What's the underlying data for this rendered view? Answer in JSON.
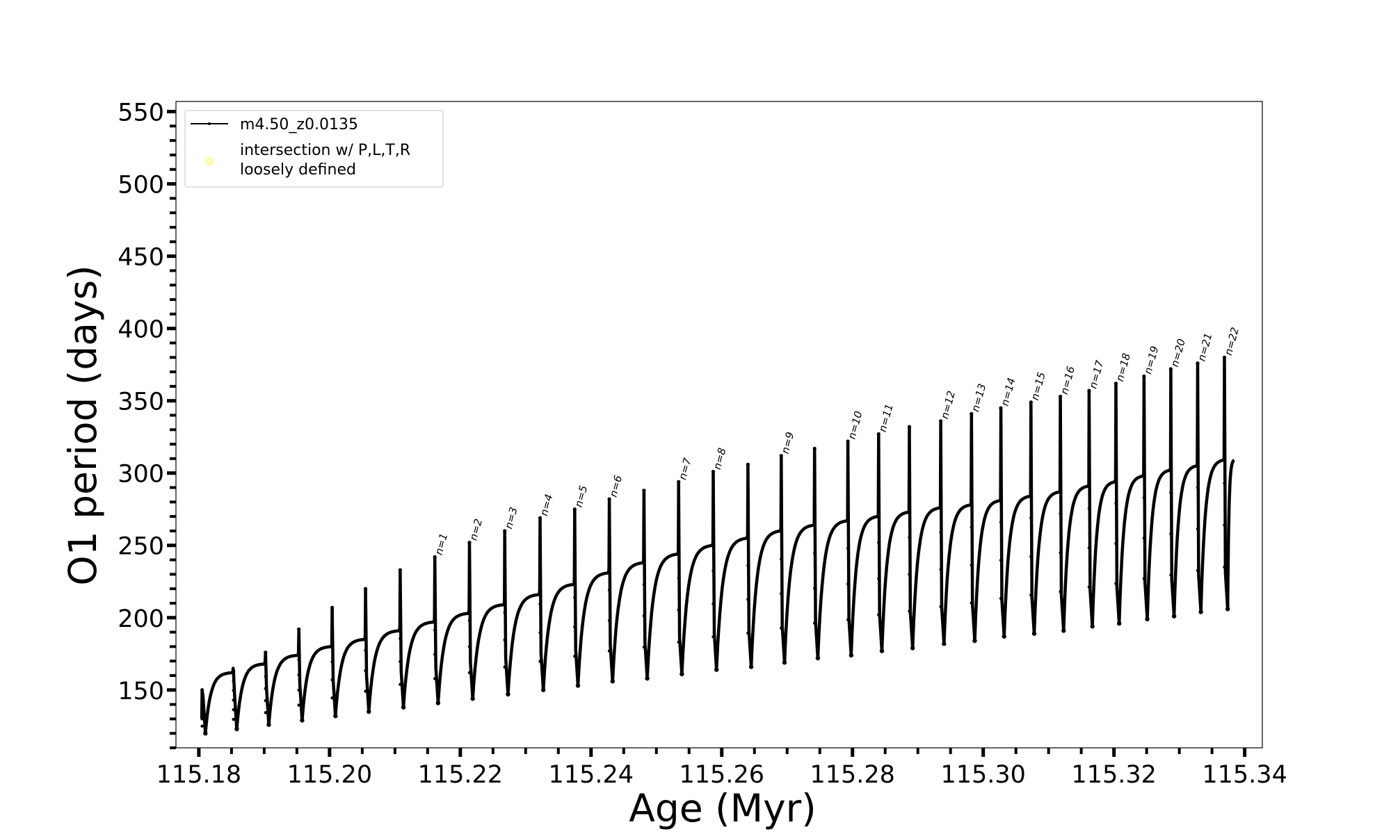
{
  "chart_data": {
    "type": "line",
    "xlabel": "Age (Myr)",
    "ylabel": "O1 period (days)",
    "xlim": [
      115.1765,
      115.3427
    ],
    "ylim": [
      110,
      557
    ],
    "x_ticks": [
      "115.18",
      "115.20",
      "115.22",
      "115.24",
      "115.26",
      "115.28",
      "115.30",
      "115.32",
      "115.34"
    ],
    "x_tick_values": [
      115.18,
      115.2,
      115.22,
      115.24,
      115.26,
      115.28,
      115.3,
      115.32,
      115.34
    ],
    "y_ticks": [
      "150",
      "200",
      "250",
      "300",
      "350",
      "400",
      "450",
      "500",
      "550"
    ],
    "y_tick_values": [
      150,
      200,
      250,
      300,
      350,
      400,
      450,
      500,
      550
    ],
    "grid": false,
    "legend_position": "top-left",
    "legend": [
      {
        "label": "m4.50_z0.0135",
        "marker": "line-with-dots",
        "color": "#000000"
      },
      {
        "label_lines": [
          "intersection w/ P,L,T,R",
          "loosely defined"
        ],
        "marker": "circle",
        "color": "#fdfbb8"
      }
    ],
    "series": [
      {
        "name": "m4.50_z0.0135",
        "color": "#000000",
        "pulses": [
          {
            "t": 115.1805,
            "min": 120,
            "peak": 150,
            "plateau": 162
          },
          {
            "t": 115.1853,
            "min": 123,
            "peak": 163,
            "plateau": 168
          },
          {
            "t": 115.1902,
            "min": 126,
            "peak": 176,
            "plateau": 174
          },
          {
            "t": 115.1953,
            "min": 129,
            "peak": 192,
            "plateau": 180
          },
          {
            "t": 115.2004,
            "min": 132,
            "peak": 207,
            "plateau": 185
          },
          {
            "t": 115.2055,
            "min": 135,
            "peak": 220,
            "plateau": 191
          },
          {
            "t": 115.2108,
            "min": 138,
            "peak": 233,
            "plateau": 197
          },
          {
            "t": 115.2161,
            "min": 141,
            "peak": 242,
            "plateau": 203
          },
          {
            "t": 115.2214,
            "min": 144,
            "peak": 252,
            "plateau": 209
          },
          {
            "t": 115.2268,
            "min": 147,
            "peak": 260,
            "plateau": 216
          },
          {
            "t": 115.2322,
            "min": 150,
            "peak": 269,
            "plateau": 223
          },
          {
            "t": 115.2375,
            "min": 153,
            "peak": 275,
            "plateau": 231
          },
          {
            "t": 115.2428,
            "min": 156,
            "peak": 282,
            "plateau": 238
          },
          {
            "t": 115.2481,
            "min": 158,
            "peak": 288,
            "plateau": 244
          },
          {
            "t": 115.2534,
            "min": 161,
            "peak": 294,
            "plateau": 250
          },
          {
            "t": 115.2587,
            "min": 164,
            "peak": 301,
            "plateau": 255
          },
          {
            "t": 115.264,
            "min": 166,
            "peak": 306,
            "plateau": 260
          },
          {
            "t": 115.2691,
            "min": 169,
            "peak": 312,
            "plateau": 264
          },
          {
            "t": 115.2742,
            "min": 172,
            "peak": 317,
            "plateau": 267
          },
          {
            "t": 115.2793,
            "min": 174,
            "peak": 322,
            "plateau": 270
          },
          {
            "t": 115.284,
            "min": 177,
            "peak": 327,
            "plateau": 273
          },
          {
            "t": 115.2887,
            "min": 179,
            "peak": 332,
            "plateau": 276
          },
          {
            "t": 115.2935,
            "min": 182,
            "peak": 336,
            "plateau": 278
          },
          {
            "t": 115.2982,
            "min": 184,
            "peak": 341,
            "plateau": 281
          },
          {
            "t": 115.3027,
            "min": 187,
            "peak": 345,
            "plateau": 284
          },
          {
            "t": 115.3073,
            "min": 189,
            "peak": 349,
            "plateau": 287
          },
          {
            "t": 115.3118,
            "min": 191,
            "peak": 353,
            "plateau": 291
          },
          {
            "t": 115.3162,
            "min": 194,
            "peak": 357,
            "plateau": 294
          },
          {
            "t": 115.3203,
            "min": 196,
            "peak": 362,
            "plateau": 298
          },
          {
            "t": 115.3246,
            "min": 199,
            "peak": 367,
            "plateau": 302
          },
          {
            "t": 115.3287,
            "min": 201,
            "peak": 372,
            "plateau": 305
          },
          {
            "t": 115.3328,
            "min": 204,
            "peak": 376,
            "plateau": 309
          },
          {
            "t": 115.3369,
            "min": 206,
            "peak": 380,
            "plateau": 309
          }
        ],
        "end_x": 115.3385
      }
    ],
    "annotations": [
      {
        "text": "n=1",
        "x": 115.2161,
        "y": 242
      },
      {
        "text": "n=2",
        "x": 115.2214,
        "y": 252
      },
      {
        "text": "n=3",
        "x": 115.2268,
        "y": 260
      },
      {
        "text": "n=4",
        "x": 115.2322,
        "y": 269
      },
      {
        "text": "n=5",
        "x": 115.2375,
        "y": 275
      },
      {
        "text": "n=6",
        "x": 115.2428,
        "y": 282
      },
      {
        "text": "n=7",
        "x": 115.2534,
        "y": 294
      },
      {
        "text": "n=8",
        "x": 115.2587,
        "y": 301
      },
      {
        "text": "n=9",
        "x": 115.2691,
        "y": 312
      },
      {
        "text": "n=10",
        "x": 115.2793,
        "y": 322
      },
      {
        "text": "n=11",
        "x": 115.284,
        "y": 327
      },
      {
        "text": "n=12",
        "x": 115.2935,
        "y": 336
      },
      {
        "text": "n=13",
        "x": 115.2982,
        "y": 341
      },
      {
        "text": "n=14",
        "x": 115.3027,
        "y": 345
      },
      {
        "text": "n=15",
        "x": 115.3073,
        "y": 349
      },
      {
        "text": "n=16",
        "x": 115.3118,
        "y": 353
      },
      {
        "text": "n=17",
        "x": 115.3162,
        "y": 357
      },
      {
        "text": "n=18",
        "x": 115.3203,
        "y": 362
      },
      {
        "text": "n=19",
        "x": 115.3246,
        "y": 367
      },
      {
        "text": "n=20",
        "x": 115.3287,
        "y": 372
      },
      {
        "text": "n=21",
        "x": 115.3328,
        "y": 376
      },
      {
        "text": "n=22",
        "x": 115.3369,
        "y": 380
      }
    ]
  }
}
